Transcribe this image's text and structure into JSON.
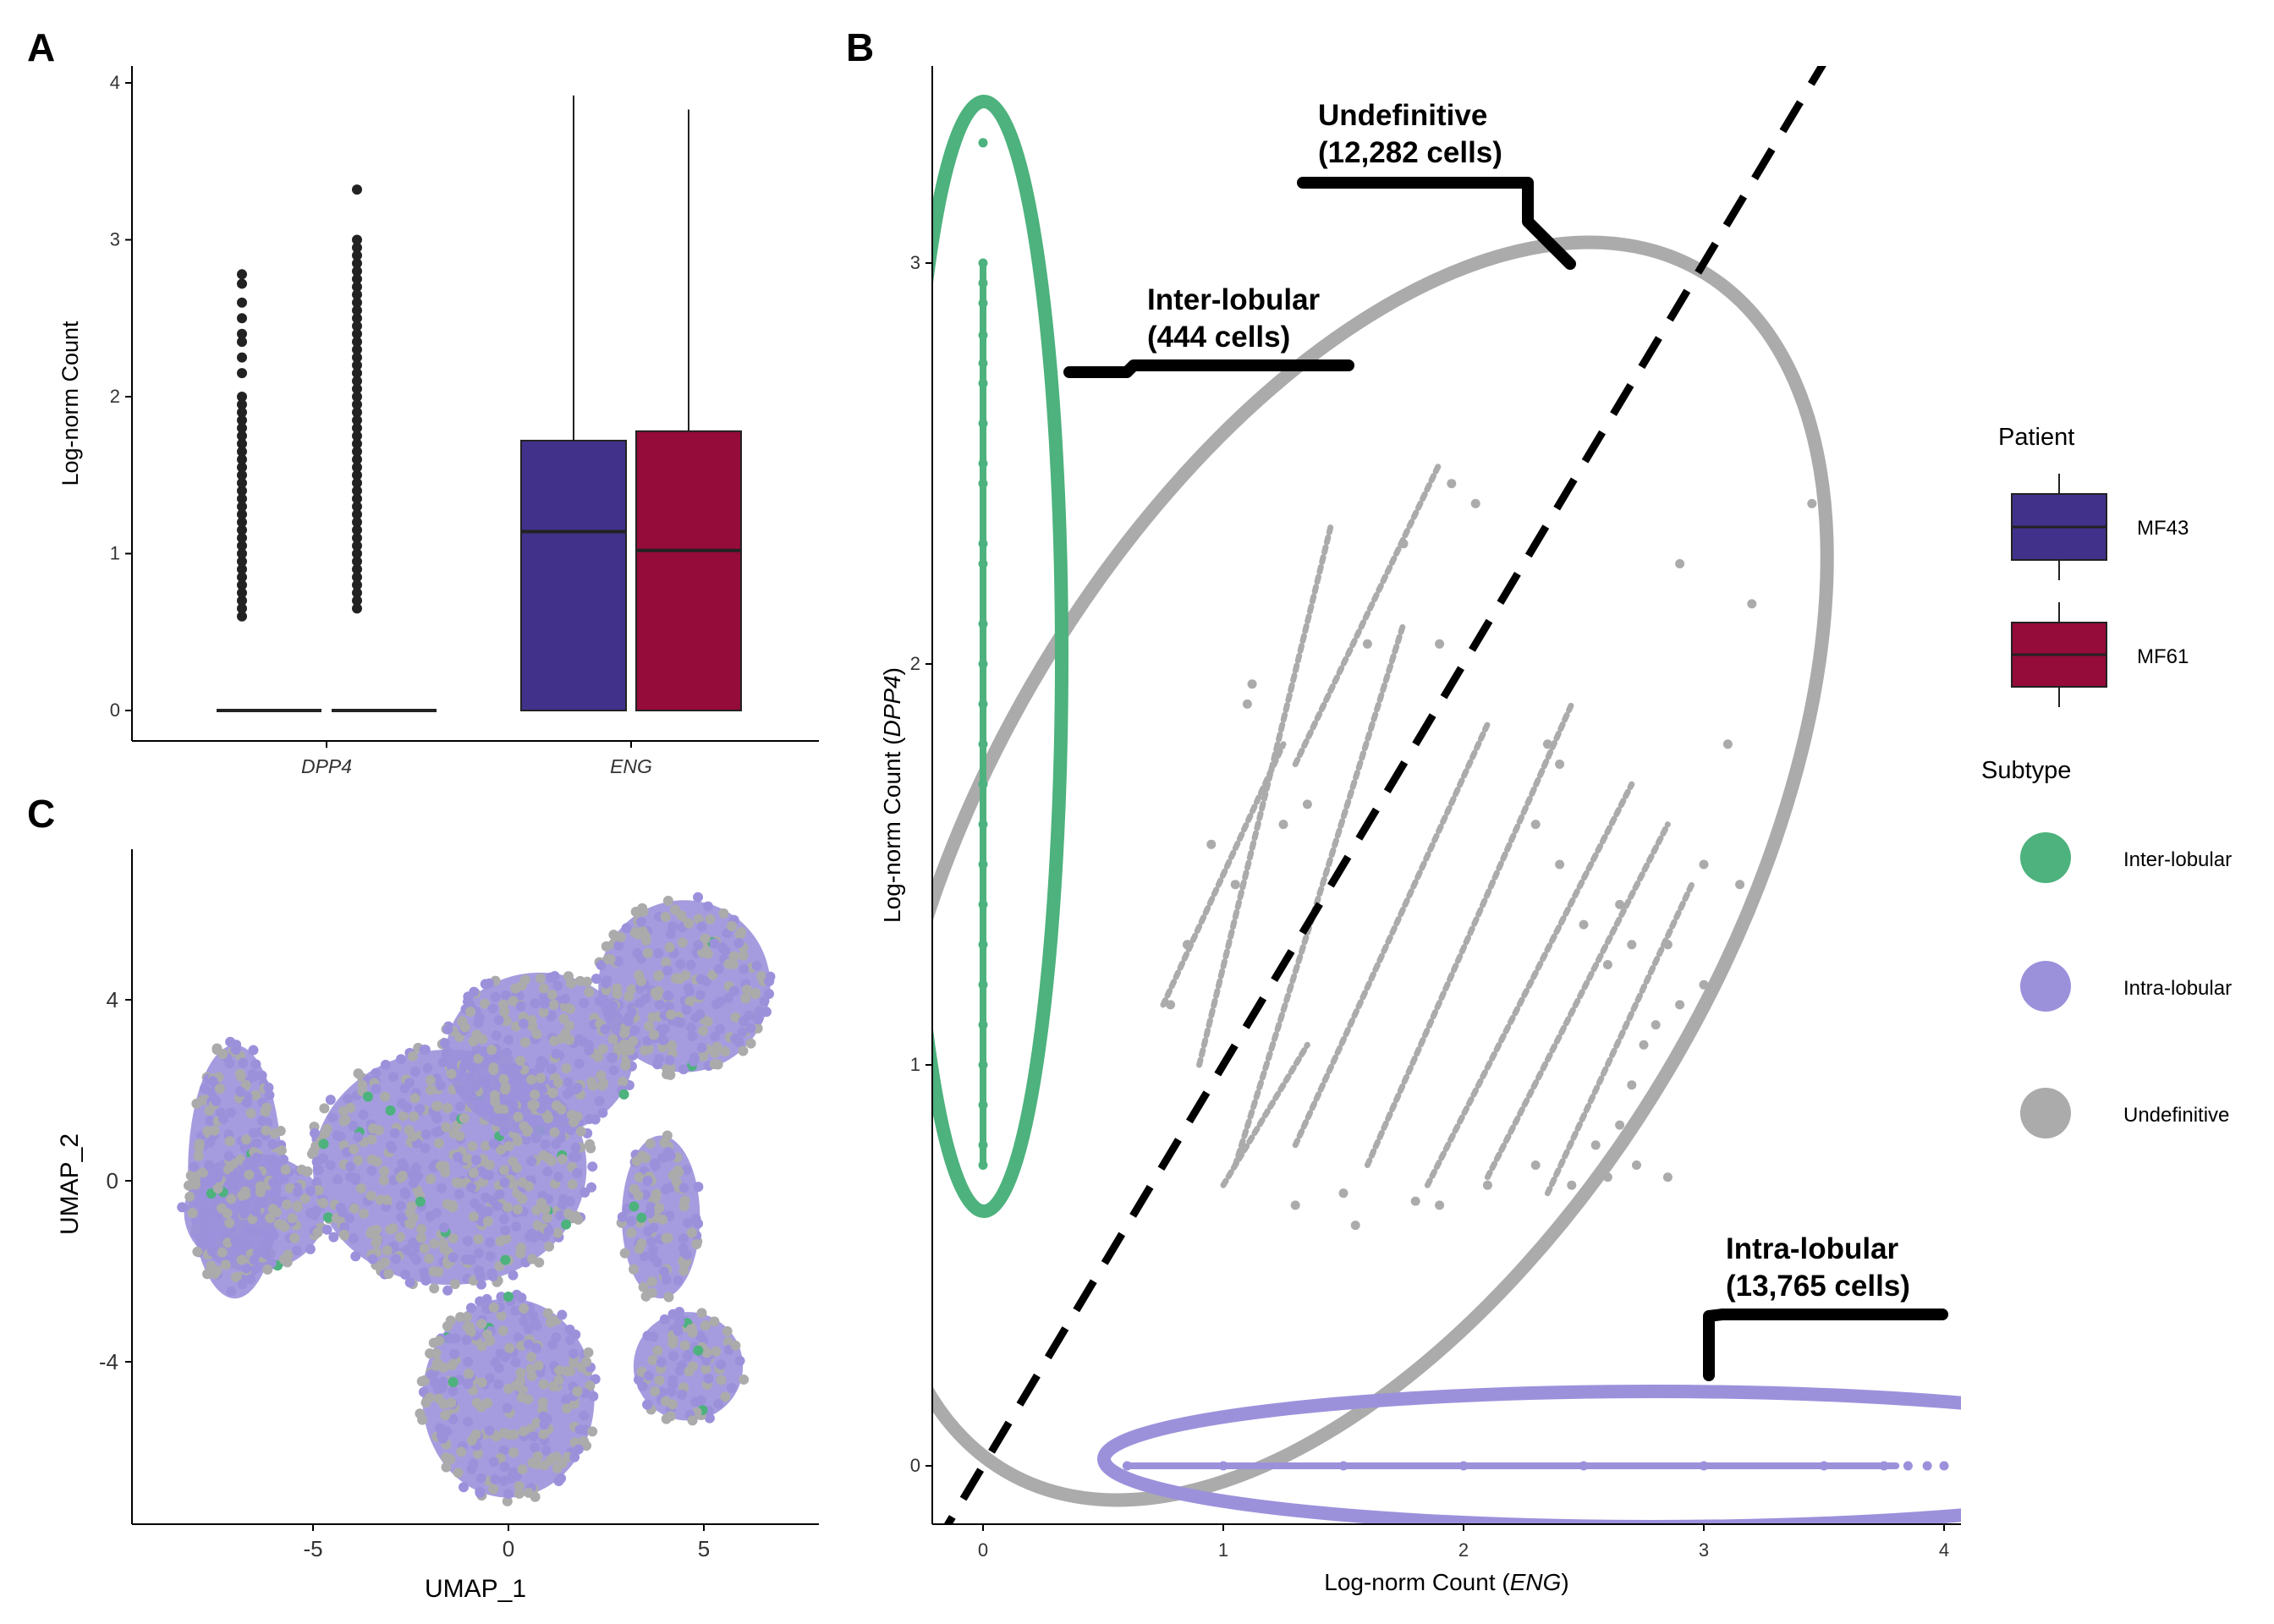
{
  "colors": {
    "mf43": "#41318B",
    "mf61": "#950B3A",
    "inter": "#4DB27D",
    "intra": "#9B91DB",
    "undef": "#ABABAB"
  },
  "panels": {
    "a": "A",
    "b": "B",
    "c": "C"
  },
  "chart_data": [
    {
      "type": "box",
      "panel": "A",
      "ylabel": "Log-norm Count",
      "ylim": [
        0,
        4
      ],
      "yticks": [
        "0",
        "1",
        "2",
        "3",
        "4"
      ],
      "categories": [
        "DPP4",
        "ENG"
      ],
      "series": [
        {
          "name": "MF43",
          "color_key": "mf43",
          "boxes": [
            {
              "category": "DPP4",
              "min": 0,
              "q1": 0,
              "median": 0,
              "q3": 0,
              "max": 0,
              "outliers": [
                0.6,
                0.65,
                0.7,
                0.75,
                0.8,
                0.85,
                0.9,
                0.95,
                1.0,
                1.05,
                1.1,
                1.15,
                1.2,
                1.25,
                1.3,
                1.35,
                1.4,
                1.45,
                1.5,
                1.55,
                1.6,
                1.65,
                1.7,
                1.75,
                1.8,
                1.85,
                1.9,
                1.95,
                2.0,
                2.15,
                2.25,
                2.35,
                2.4,
                2.5,
                2.6,
                2.72,
                2.78
              ]
            },
            {
              "category": "ENG",
              "min": 0,
              "q1": 0,
              "median": 1.14,
              "q3": 1.72,
              "max": 3.92,
              "outliers": []
            }
          ]
        },
        {
          "name": "MF61",
          "color_key": "mf61",
          "boxes": [
            {
              "category": "DPP4",
              "min": 0,
              "q1": 0,
              "median": 0,
              "q3": 0,
              "max": 0,
              "outliers": [
                0.65,
                0.7,
                0.75,
                0.8,
                0.85,
                0.9,
                0.95,
                1.0,
                1.05,
                1.1,
                1.15,
                1.2,
                1.25,
                1.3,
                1.35,
                1.4,
                1.45,
                1.5,
                1.55,
                1.6,
                1.65,
                1.7,
                1.75,
                1.8,
                1.85,
                1.9,
                1.95,
                2.0,
                2.05,
                2.1,
                2.15,
                2.2,
                2.25,
                2.3,
                2.35,
                2.4,
                2.45,
                2.5,
                2.55,
                2.6,
                2.65,
                2.7,
                2.75,
                2.8,
                2.85,
                2.9,
                2.95,
                3.0,
                3.32
              ]
            },
            {
              "category": "ENG",
              "min": 0,
              "q1": 0,
              "median": 1.02,
              "q3": 1.78,
              "max": 3.83,
              "outliers": []
            }
          ]
        }
      ]
    },
    {
      "type": "scatter",
      "panel": "B",
      "xlabel_prefix": "Log-norm Count (",
      "xlabel_gene": "ENG",
      "xlabel_suffix": ")",
      "ylabel_prefix": "Log-norm Count (",
      "ylabel_gene": "DPP4",
      "ylabel_suffix": ")",
      "xlim": [
        -0.2,
        4.1
      ],
      "ylim": [
        -0.17,
        3.48
      ],
      "xticks": [
        "0",
        "1",
        "2",
        "3",
        "4"
      ],
      "yticks": [
        "0",
        "1",
        "2",
        "3"
      ],
      "annotations": [
        {
          "line1": "Undefinitive",
          "line2": "(12,282 cells)"
        },
        {
          "line1": "Inter-lobular",
          "line2": "(444 cells)"
        },
        {
          "line1": "Intra-lobular",
          "line2": "(13,765 cells)"
        }
      ],
      "diagonal": {
        "style": "dashed",
        "slope": 1,
        "intercept": 0
      },
      "series": [
        {
          "name": "Inter-lobular",
          "color_key": "inter",
          "points": [
            [
              0,
              3.3
            ],
            [
              0,
              3.0
            ],
            [
              0,
              2.95
            ],
            [
              0,
              2.9
            ],
            [
              0,
              2.82
            ],
            [
              0,
              2.75
            ],
            [
              0,
              2.7
            ],
            [
              0,
              2.6
            ],
            [
              0,
              2.5
            ],
            [
              0,
              2.45
            ],
            [
              0,
              2.3
            ],
            [
              0,
              2.25
            ],
            [
              0,
              2.1
            ],
            [
              0,
              2.0
            ],
            [
              0,
              1.9
            ],
            [
              0,
              1.8
            ],
            [
              0,
              1.7
            ],
            [
              0,
              1.6
            ],
            [
              0,
              1.5
            ],
            [
              0,
              1.4
            ],
            [
              0,
              1.3
            ],
            [
              0,
              1.2
            ],
            [
              0,
              1.1
            ],
            [
              0,
              1.0
            ],
            [
              0,
              0.9
            ],
            [
              0,
              0.8
            ],
            [
              0,
              0.75
            ]
          ]
        },
        {
          "name": "Intra-lobular",
          "color_key": "intra",
          "points": [
            [
              0.6,
              0
            ],
            [
              1.0,
              0
            ],
            [
              1.5,
              0
            ],
            [
              2.0,
              0
            ],
            [
              2.5,
              0
            ],
            [
              3.0,
              0
            ],
            [
              3.5,
              0
            ],
            [
              3.75,
              0
            ],
            [
              3.85,
              0
            ],
            [
              3.93,
              0
            ],
            [
              4.0,
              0
            ]
          ]
        },
        {
          "name": "Undefinitive",
          "color_key": "undef",
          "points": [
            [
              0.78,
              1.15
            ],
            [
              0.85,
              1.3
            ],
            [
              0.95,
              1.55
            ],
            [
              1.05,
              1.45
            ],
            [
              1.1,
              1.9
            ],
            [
              1.12,
              1.95
            ],
            [
              1.25,
              1.6
            ],
            [
              1.35,
              1.65
            ],
            [
              1.6,
              2.05
            ],
            [
              1.75,
              2.3
            ],
            [
              1.9,
              2.05
            ],
            [
              1.95,
              2.45
            ],
            [
              2.05,
              2.4
            ],
            [
              2.35,
              1.8
            ],
            [
              2.4,
              1.75
            ],
            [
              2.65,
              1.4
            ],
            [
              2.85,
              1.3
            ],
            [
              2.9,
              2.25
            ],
            [
              3.0,
              1.5
            ],
            [
              3.1,
              1.8
            ],
            [
              3.15,
              1.45
            ],
            [
              3.2,
              2.15
            ],
            [
              3.45,
              2.4
            ],
            [
              1.3,
              0.65
            ],
            [
              1.55,
              0.6
            ],
            [
              1.9,
              0.65
            ],
            [
              2.3,
              0.75
            ],
            [
              2.6,
              0.72
            ],
            [
              2.85,
              0.72
            ],
            [
              2.72,
              0.75
            ],
            [
              1.5,
              0.68
            ],
            [
              1.8,
              0.66
            ],
            [
              2.1,
              0.7
            ],
            [
              2.45,
              0.7
            ],
            [
              2.55,
              0.8
            ],
            [
              2.65,
              0.85
            ],
            [
              2.7,
              0.95
            ],
            [
              2.75,
              1.05
            ],
            [
              2.8,
              1.1
            ],
            [
              2.9,
              1.15
            ],
            [
              3.0,
              1.2
            ],
            [
              2.6,
              1.25
            ],
            [
              2.7,
              1.3
            ],
            [
              2.5,
              1.35
            ],
            [
              2.4,
              1.5
            ],
            [
              2.3,
              1.6
            ]
          ],
          "lines": [
            {
              "from": [
                0.75,
                1.15
              ],
              "to": [
                1.25,
                1.8
              ]
            },
            {
              "from": [
                0.9,
                1.0
              ],
              "to": [
                1.45,
                2.35
              ]
            },
            {
              "from": [
                1.05,
                0.75
              ],
              "to": [
                1.75,
                2.1
              ]
            },
            {
              "from": [
                1.3,
                0.8
              ],
              "to": [
                2.1,
                1.85
              ]
            },
            {
              "from": [
                1.6,
                0.75
              ],
              "to": [
                2.45,
                1.9
              ]
            },
            {
              "from": [
                1.85,
                0.7
              ],
              "to": [
                2.7,
                1.7
              ]
            },
            {
              "from": [
                2.1,
                0.72
              ],
              "to": [
                2.85,
                1.6
              ]
            },
            {
              "from": [
                2.35,
                0.68
              ],
              "to": [
                2.95,
                1.45
              ]
            },
            {
              "from": [
                1.3,
                1.75
              ],
              "to": [
                1.9,
                2.5
              ]
            },
            {
              "from": [
                1.0,
                0.7
              ],
              "to": [
                1.35,
                1.05
              ]
            }
          ]
        }
      ]
    },
    {
      "type": "scatter",
      "panel": "C",
      "xlabel": "UMAP_1",
      "ylabel": "UMAP_2",
      "xlim": [
        -9.5,
        7.5
      ],
      "ylim": [
        -7.8,
        6.8
      ],
      "xticks": [
        "-5",
        "0",
        "5"
      ],
      "yticks": [
        "-4",
        "0",
        "4"
      ],
      "clusters": [
        {
          "name": "left lobe",
          "cx": -7.0,
          "cy": 0.2,
          "rx": 1.2,
          "ry": 2.8
        },
        {
          "name": "left body",
          "cx": -6.5,
          "cy": -0.7,
          "rx": 1.8,
          "ry": 1.3
        },
        {
          "name": "central mass",
          "cx": -1.5,
          "cy": 0.3,
          "rx": 3.5,
          "ry": 2.6
        },
        {
          "name": "upper centre",
          "cx": 0.8,
          "cy": 2.8,
          "rx": 2.4,
          "ry": 1.8
        },
        {
          "name": "upper right",
          "cx": 4.5,
          "cy": 4.3,
          "rx": 2.2,
          "ry": 1.9
        },
        {
          "name": "lower centre",
          "cx": 0.0,
          "cy": -4.8,
          "rx": 2.2,
          "ry": 2.2
        },
        {
          "name": "right middle",
          "cx": 3.9,
          "cy": -0.8,
          "rx": 1.0,
          "ry": 1.8
        },
        {
          "name": "lower right",
          "cx": 4.6,
          "cy": -4.1,
          "rx": 1.4,
          "ry": 1.2
        }
      ]
    }
  ],
  "legend": {
    "patient_title": "Patient",
    "patients": [
      {
        "label": "MF43",
        "color_key": "mf43"
      },
      {
        "label": "MF61",
        "color_key": "mf61"
      }
    ],
    "subtype_title": "Subtype",
    "subtypes": [
      {
        "label": "Inter-lobular",
        "color_key": "inter"
      },
      {
        "label": "Intra-lobular",
        "color_key": "intra"
      },
      {
        "label": "Undefinitive",
        "color_key": "undef"
      }
    ]
  }
}
